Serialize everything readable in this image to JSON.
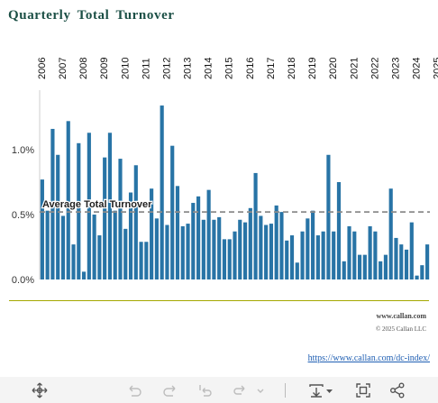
{
  "title": "Quarterly  Total  Turnover",
  "footer": {
    "site": "www.callan.com",
    "copyright": "© 2025 Callan LLC",
    "link": "https://www.callan.com/dc-index/"
  },
  "colors": {
    "bar": "#2874a6",
    "title": "#1b4f45",
    "average_line": "#8c8c8c",
    "rule": "#a5a800"
  },
  "toolbar": {
    "icons": [
      "move-icon",
      "undo-icon",
      "redo-icon",
      "reset-icon",
      "forward-icon",
      "download-icon",
      "fit-icon",
      "share-icon"
    ]
  },
  "chart_data": {
    "type": "bar",
    "title": "Quarterly Total Turnover",
    "y_ticks": [
      "1.0%",
      "0.5%",
      "0.0%"
    ],
    "y_tick_values": [
      1.0,
      0.5,
      0.0
    ],
    "ylim": [
      0,
      1.4
    ],
    "year_labels": [
      "2006",
      "2007",
      "2008",
      "2009",
      "2010",
      "2011",
      "2012",
      "2013",
      "2014",
      "2015",
      "2016",
      "2017",
      "2018",
      "2019",
      "2020",
      "2021",
      "2022",
      "2023",
      "2024",
      "2025"
    ],
    "first_year": 2006,
    "values": [
      0.77,
      0.53,
      1.16,
      0.96,
      0.49,
      1.22,
      0.27,
      1.05,
      0.06,
      1.13,
      0.5,
      0.34,
      0.94,
      1.13,
      0.53,
      0.93,
      0.39,
      0.67,
      0.88,
      0.29,
      0.29,
      0.7,
      0.47,
      1.34,
      0.42,
      1.03,
      0.72,
      0.41,
      0.43,
      0.59,
      0.64,
      0.46,
      0.69,
      0.46,
      0.48,
      0.31,
      0.31,
      0.37,
      0.46,
      0.44,
      0.55,
      0.82,
      0.49,
      0.42,
      0.43,
      0.57,
      0.52,
      0.3,
      0.34,
      0.13,
      0.37,
      0.47,
      0.53,
      0.34,
      0.37,
      0.96,
      0.37,
      0.75,
      0.14,
      0.41,
      0.37,
      0.19,
      0.19,
      0.41,
      0.37,
      0.14,
      0.19,
      0.7,
      0.32,
      0.27,
      0.23,
      0.44,
      0.03,
      0.11,
      0.27
    ],
    "average_label": "Average Total Turnover",
    "average": 0.52,
    "grid": false,
    "legend": "none"
  }
}
